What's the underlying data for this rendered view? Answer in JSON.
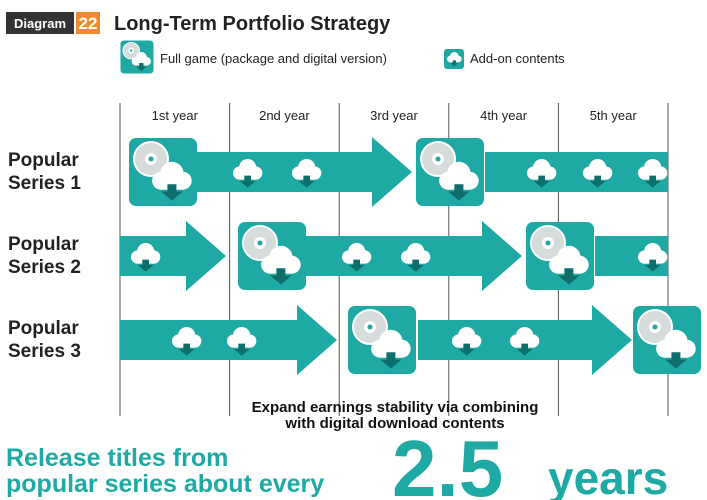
{
  "header": {
    "label": "Diagram",
    "number": "22",
    "title": "Long-Term Portfolio Strategy"
  },
  "legend": {
    "full_game": "Full game (package and digital version)",
    "addon": "Add-on contents"
  },
  "years": [
    "1st  year",
    "2nd year",
    "3rd year",
    "4th year",
    "5th year"
  ],
  "rows": [
    {
      "lines": [
        "Popular",
        "Series 1"
      ]
    },
    {
      "lines": [
        "Popular",
        "Series 2"
      ]
    },
    {
      "lines": [
        "Popular",
        "Series 3"
      ]
    }
  ],
  "note": [
    "Expand earnings stability via combining",
    "with digital download contents"
  ],
  "headline": {
    "lines": [
      "Release titles from",
      "popular series about every"
    ],
    "number": "2.5",
    "unit": "years"
  }
}
